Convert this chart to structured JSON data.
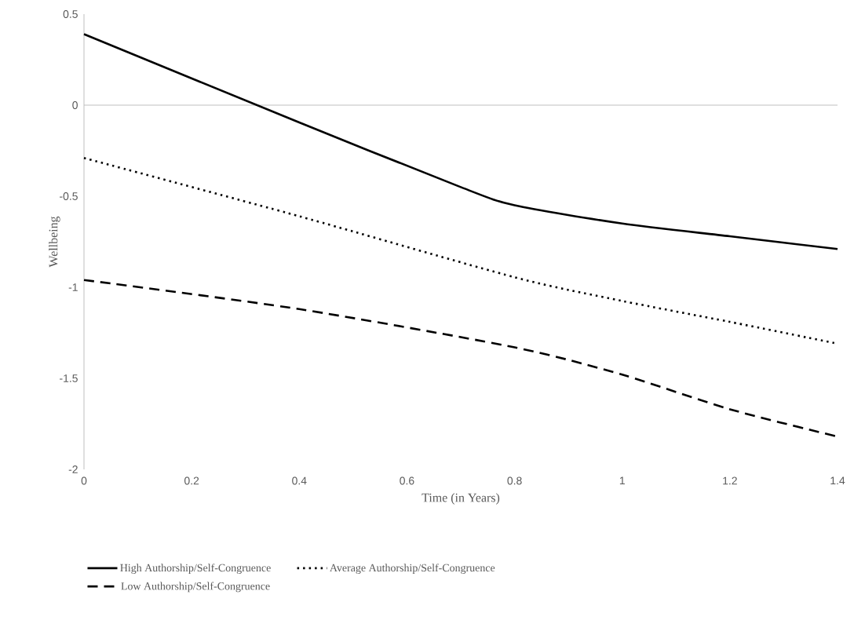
{
  "chart_data": {
    "type": "line",
    "xlabel": "Time (in Years)",
    "ylabel": "Wellbeing",
    "xlim": [
      0,
      1.4
    ],
    "ylim": [
      -2,
      0.5
    ],
    "xticks": [
      0,
      0.2,
      0.4,
      0.6,
      0.8,
      1,
      1.2,
      1.4
    ],
    "yticks": [
      -2,
      -1.5,
      -1,
      -0.5,
      0,
      0.5
    ],
    "grid": false,
    "legend": "bottom",
    "marker": "none",
    "ref_lines": [
      {
        "axis": "y",
        "value": 0,
        "color": "#bfbfbf"
      }
    ],
    "series": [
      {
        "name": "High Authorship/Self-Congruence",
        "color": "#000000",
        "line_style": "solid",
        "x": [
          0,
          0.4,
          0.7,
          0.8,
          1.0,
          1.2,
          1.4
        ],
        "values": [
          0.39,
          -0.095,
          -0.45,
          -0.55,
          -0.65,
          -0.72,
          -0.79
        ]
      },
      {
        "name": "Average Authorship/Self-Congruence",
        "color": "#000000",
        "line_style": "dotted",
        "x": [
          0,
          0.4,
          0.8,
          1.0,
          1.2,
          1.4
        ],
        "values": [
          -0.29,
          -0.61,
          -0.945,
          -1.075,
          -1.19,
          -1.31
        ]
      },
      {
        "name": "Low Authorship/Self-Congruence",
        "color": "#000000",
        "line_style": "dashed",
        "x": [
          0,
          0.4,
          0.8,
          1.0,
          1.2,
          1.4
        ],
        "values": [
          -0.96,
          -1.12,
          -1.33,
          -1.48,
          -1.67,
          -1.82
        ]
      }
    ]
  }
}
